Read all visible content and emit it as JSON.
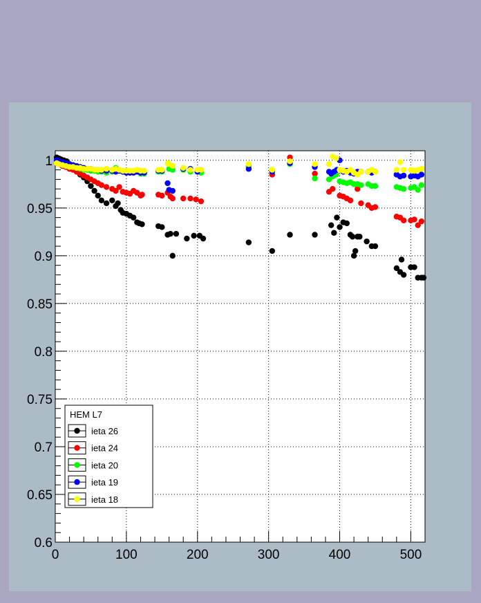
{
  "chart_data": {
    "type": "scatter",
    "legend_title": "HEM L7",
    "xlim": [
      0,
      520
    ],
    "ylim": [
      0.6,
      1.01
    ],
    "x_ticks": [
      0,
      100,
      200,
      300,
      400,
      500
    ],
    "x_tick_labels": [
      "0",
      "100",
      "200",
      "300",
      "400",
      "500"
    ],
    "y_ticks": [
      0.6,
      0.65,
      0.7,
      0.75,
      0.8,
      0.85,
      0.9,
      0.95,
      1.0
    ],
    "y_tick_labels": [
      "0.6",
      "0.65",
      "0.7",
      "0.75",
      "0.8",
      "0.85",
      "0.9",
      "0.95",
      "1"
    ],
    "grid": true,
    "legend_position": "bottom-left",
    "series": [
      {
        "name": "ieta 26",
        "color": "#000000",
        "x": [
          2,
          5,
          8,
          12,
          16,
          20,
          25,
          30,
          35,
          40,
          45,
          50,
          55,
          60,
          65,
          72,
          80,
          85,
          88,
          92,
          95,
          100,
          105,
          110,
          115,
          118,
          122,
          145,
          150,
          158,
          162,
          165,
          170,
          185,
          195,
          203,
          208,
          272,
          305,
          330,
          365,
          388,
          392,
          396,
          400,
          405,
          410,
          415,
          418,
          420,
          422,
          425,
          428,
          438,
          445,
          450,
          480,
          485,
          487,
          490,
          500,
          505,
          510,
          515,
          518
        ],
        "y": [
          1.003,
          1.002,
          1.001,
          1.0,
          0.999,
          0.996,
          0.993,
          0.99,
          0.985,
          0.982,
          0.978,
          0.973,
          0.968,
          0.963,
          0.958,
          0.955,
          0.958,
          0.952,
          0.955,
          0.948,
          0.945,
          0.944,
          0.942,
          0.94,
          0.935,
          0.934,
          0.933,
          0.931,
          0.93,
          0.922,
          0.923,
          0.9,
          0.923,
          0.918,
          0.921,
          0.921,
          0.918,
          0.914,
          0.905,
          0.922,
          0.922,
          0.932,
          0.924,
          0.94,
          0.93,
          0.935,
          0.934,
          0.922,
          0.92,
          0.9,
          0.905,
          0.92,
          0.92,
          0.915,
          0.91,
          0.91,
          0.887,
          0.883,
          0.896,
          0.88,
          0.888,
          0.888,
          0.877,
          0.877,
          0.877
        ]
      },
      {
        "name": "ieta 24",
        "color": "#ff0000",
        "x": [
          2,
          5,
          10,
          15,
          20,
          25,
          30,
          35,
          40,
          45,
          50,
          55,
          60,
          65,
          72,
          80,
          85,
          90,
          95,
          100,
          105,
          110,
          115,
          120,
          122,
          145,
          150,
          158,
          162,
          165,
          180,
          190,
          198,
          205,
          272,
          305,
          330,
          365,
          385,
          390,
          400,
          405,
          410,
          415,
          420,
          425,
          430,
          440,
          445,
          450,
          480,
          485,
          490,
          500,
          505,
          510,
          515
        ],
        "y": [
          0.997,
          0.996,
          0.994,
          0.993,
          0.991,
          0.99,
          0.988,
          0.986,
          0.984,
          0.982,
          0.98,
          0.978,
          0.976,
          0.974,
          0.972,
          0.97,
          0.968,
          0.972,
          0.967,
          0.966,
          0.965,
          0.968,
          0.966,
          0.963,
          0.964,
          0.964,
          0.963,
          0.966,
          0.962,
          0.96,
          0.96,
          0.96,
          0.959,
          0.957,
          0.994,
          0.985,
          1.003,
          0.986,
          0.967,
          0.97,
          0.963,
          0.962,
          0.96,
          0.958,
          0.975,
          0.97,
          0.955,
          0.953,
          0.95,
          0.951,
          0.941,
          0.94,
          0.937,
          0.937,
          0.938,
          0.932,
          0.936
        ]
      },
      {
        "name": "ieta 20",
        "color": "#00ff00",
        "x": [
          2,
          5,
          10,
          15,
          20,
          25,
          30,
          35,
          40,
          45,
          50,
          55,
          60,
          65,
          72,
          80,
          85,
          90,
          95,
          100,
          105,
          110,
          115,
          120,
          125,
          145,
          150,
          160,
          165,
          180,
          190,
          200,
          205,
          272,
          305,
          330,
          365,
          385,
          390,
          395,
          400,
          405,
          410,
          415,
          420,
          425,
          430,
          440,
          445,
          450,
          480,
          485,
          490,
          500,
          505,
          510,
          515
        ],
        "y": [
          0.998,
          0.997,
          0.996,
          0.995,
          0.994,
          0.993,
          0.992,
          0.991,
          0.99,
          0.99,
          0.989,
          0.989,
          0.988,
          0.988,
          0.987,
          0.988,
          0.992,
          0.989,
          0.988,
          0.987,
          0.987,
          0.988,
          0.988,
          0.986,
          0.986,
          0.988,
          0.988,
          0.991,
          0.99,
          0.99,
          0.988,
          0.988,
          0.987,
          0.993,
          0.99,
          0.996,
          0.981,
          0.98,
          0.983,
          0.985,
          0.978,
          0.977,
          0.976,
          0.977,
          0.975,
          0.975,
          0.974,
          0.975,
          0.973,
          0.973,
          0.972,
          0.971,
          0.97,
          0.971,
          0.972,
          0.969,
          0.974
        ]
      },
      {
        "name": "ieta 19",
        "color": "#0000ff",
        "x": [
          2,
          5,
          10,
          15,
          20,
          25,
          30,
          35,
          40,
          45,
          50,
          55,
          60,
          65,
          72,
          80,
          85,
          90,
          95,
          100,
          105,
          110,
          115,
          120,
          125,
          145,
          150,
          158,
          160,
          165,
          180,
          190,
          200,
          205,
          272,
          305,
          330,
          365,
          385,
          388,
          392,
          396,
          400,
          405,
          410,
          415,
          420,
          425,
          430,
          440,
          445,
          450,
          480,
          485,
          490,
          500,
          505,
          510,
          515
        ],
        "y": [
          1.0,
          0.999,
          0.998,
          0.997,
          0.996,
          0.995,
          0.994,
          0.993,
          0.992,
          0.991,
          0.991,
          0.99,
          0.99,
          0.989,
          0.989,
          0.989,
          0.988,
          0.989,
          0.988,
          0.987,
          0.987,
          0.987,
          0.988,
          0.987,
          0.987,
          0.989,
          0.989,
          0.976,
          0.969,
          0.968,
          0.991,
          0.991,
          0.988,
          0.99,
          0.991,
          0.988,
          0.997,
          0.993,
          0.988,
          0.986,
          0.988,
          0.99,
          1.0,
          0.988,
          0.989,
          0.987,
          0.986,
          0.988,
          0.988,
          0.988,
          0.987,
          0.988,
          0.985,
          0.983,
          0.984,
          0.983,
          0.984,
          0.983,
          0.985
        ]
      },
      {
        "name": "ieta 18",
        "color": "#ffff00",
        "x": [
          2,
          5,
          10,
          15,
          20,
          25,
          30,
          35,
          40,
          45,
          50,
          55,
          60,
          65,
          72,
          80,
          85,
          90,
          95,
          100,
          105,
          110,
          115,
          120,
          125,
          145,
          150,
          158,
          160,
          165,
          180,
          190,
          200,
          205,
          272,
          305,
          330,
          365,
          385,
          390,
          395,
          400,
          405,
          410,
          415,
          420,
          425,
          430,
          440,
          445,
          450,
          480,
          485,
          490,
          500,
          505,
          510,
          515
        ],
        "y": [
          0.997,
          0.996,
          0.995,
          0.994,
          0.993,
          0.993,
          0.992,
          0.992,
          0.991,
          0.991,
          0.991,
          0.99,
          0.99,
          0.99,
          0.991,
          0.99,
          0.991,
          0.99,
          0.989,
          0.989,
          0.989,
          0.989,
          0.99,
          0.989,
          0.989,
          0.99,
          0.99,
          0.997,
          0.996,
          0.994,
          0.992,
          0.99,
          0.99,
          0.99,
          0.996,
          0.99,
          0.999,
          0.996,
          0.996,
          1.004,
          1.002,
          0.99,
          0.989,
          0.988,
          0.99,
          0.987,
          0.985,
          0.988,
          0.988,
          0.99,
          0.988,
          0.99,
          0.998,
          0.99,
          0.99,
          0.989,
          0.99,
          0.991
        ]
      }
    ]
  }
}
